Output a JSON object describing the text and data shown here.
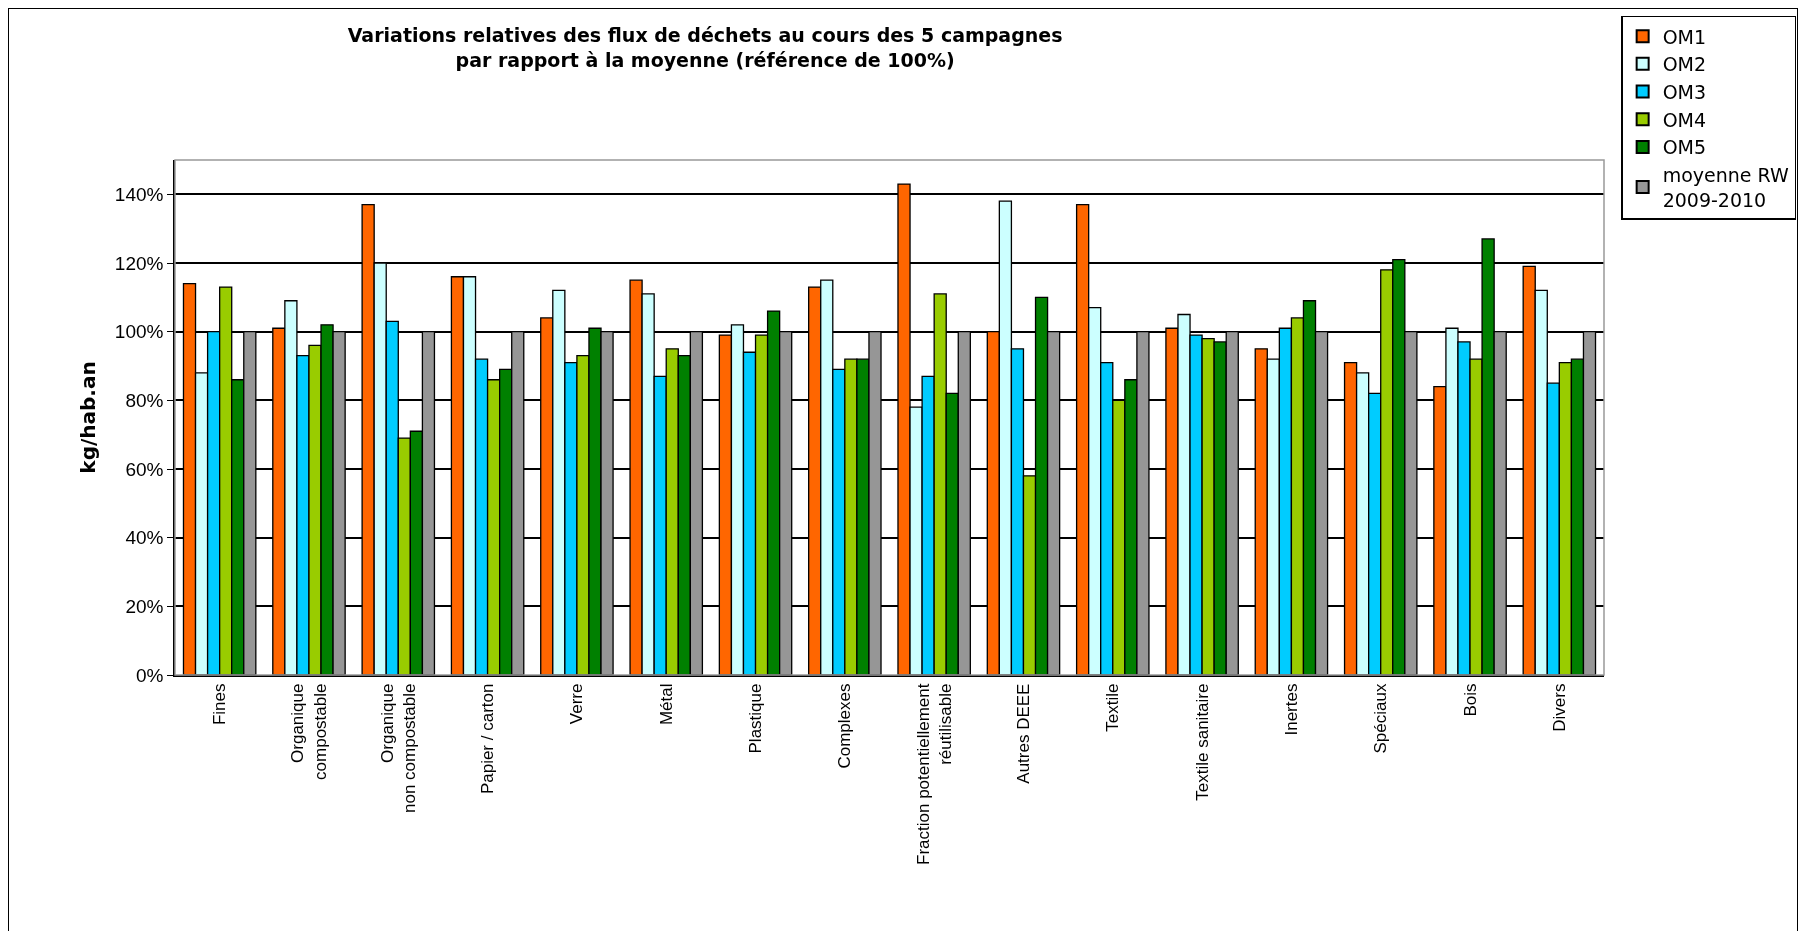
{
  "chart_data": {
    "type": "bar",
    "title": "Variations relatives des flux de déchets au cours des 5 campagnes\npar rapport à la moyenne (référence de 100%)",
    "ylabel": "kg/hab.an",
    "categories": [
      "Fines",
      "Organique\ncompostable",
      "Organique\nnon compostable",
      "Papier / carton",
      "Verre",
      "Métal",
      "Plastique",
      "Complexes",
      "Fraction potentiellement\nréutilisable",
      "Autres DEEE",
      "Textile",
      "Textile sanitaire",
      "Inertes",
      "Spéciaux",
      "Bois",
      "Divers"
    ],
    "series": [
      {
        "name": "OM1",
        "color": "#ff6600",
        "values": [
          114,
          101,
          137,
          116,
          104,
          115,
          99,
          113,
          143,
          100,
          137,
          101,
          95,
          91,
          84,
          119
        ]
      },
      {
        "name": "OM2",
        "color": "#ccffff",
        "values": [
          88,
          109,
          120,
          116,
          112,
          111,
          102,
          115,
          78,
          138,
          107,
          105,
          92,
          88,
          101,
          112
        ]
      },
      {
        "name": "OM3",
        "color": "#00ccff",
        "values": [
          100,
          93,
          103,
          92,
          91,
          87,
          94,
          89,
          87,
          95,
          91,
          99,
          101,
          82,
          97,
          85
        ]
      },
      {
        "name": "OM4",
        "color": "#99cc00",
        "values": [
          113,
          96,
          69,
          86,
          93,
          95,
          99,
          92,
          111,
          58,
          80,
          98,
          104,
          118,
          92,
          91
        ]
      },
      {
        "name": "OM5",
        "color": "#008000",
        "values": [
          86,
          102,
          71,
          89,
          101,
          93,
          106,
          92,
          82,
          110,
          86,
          97,
          109,
          121,
          127,
          92
        ]
      },
      {
        "name": "moyenne RW\n2009-2010",
        "color": "#969696",
        "values": [
          100,
          100,
          100,
          100,
          100,
          100,
          100,
          100,
          100,
          100,
          100,
          100,
          100,
          100,
          100,
          100
        ]
      }
    ],
    "ylim": [
      0,
      150
    ],
    "yticks": [
      {
        "value": 0,
        "label": "0%"
      },
      {
        "value": 20,
        "label": "20%"
      },
      {
        "value": 40,
        "label": "40%"
      },
      {
        "value": 60,
        "label": "60%"
      },
      {
        "value": 80,
        "label": "80%"
      },
      {
        "value": 100,
        "label": "100%"
      },
      {
        "value": 120,
        "label": "120%"
      },
      {
        "value": 140,
        "label": "140%"
      }
    ],
    "grid": "y",
    "legend": "top right"
  }
}
